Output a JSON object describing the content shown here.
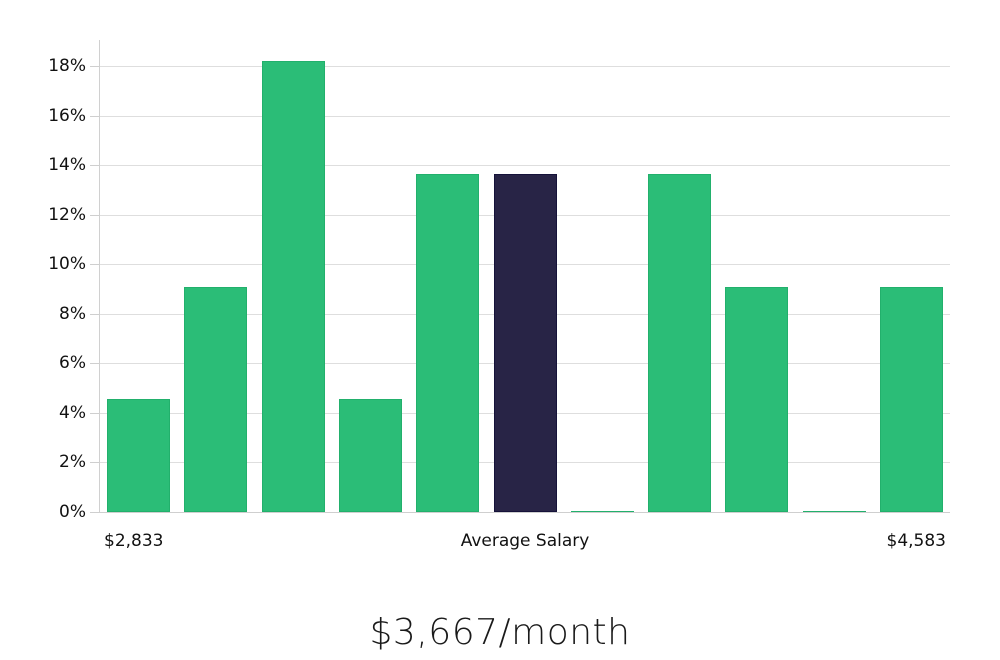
{
  "chart_data": {
    "type": "bar",
    "title": "",
    "xlabel": "Average Salary",
    "ylabel": "",
    "ylim": [
      0,
      19
    ],
    "yticks": [
      "0%",
      "2%",
      "4%",
      "6%",
      "8%",
      "10%",
      "12%",
      "14%",
      "16%",
      "18%"
    ],
    "x_range_labels": {
      "min": "$2,833",
      "max": "$4,583"
    },
    "categories": [
      "bin1",
      "bin2",
      "bin3",
      "bin4",
      "bin5",
      "bin6",
      "bin7",
      "bin8",
      "bin9",
      "bin10",
      "bin11"
    ],
    "values": [
      4.55,
      9.09,
      18.18,
      4.55,
      13.64,
      13.64,
      0,
      13.64,
      9.09,
      0,
      9.09
    ],
    "highlight_index": 5,
    "grid": true,
    "legend": null
  },
  "labels": {
    "x_min": "$2,833",
    "x_center": "Average Salary",
    "x_max": "$4,583",
    "average_salary": "$3,667/month"
  },
  "colors": {
    "bar": "#2bbd77",
    "bar_border": "#22b06c",
    "highlight": "#282446",
    "highlight_border": "#15123a",
    "grid": "#dedede"
  }
}
